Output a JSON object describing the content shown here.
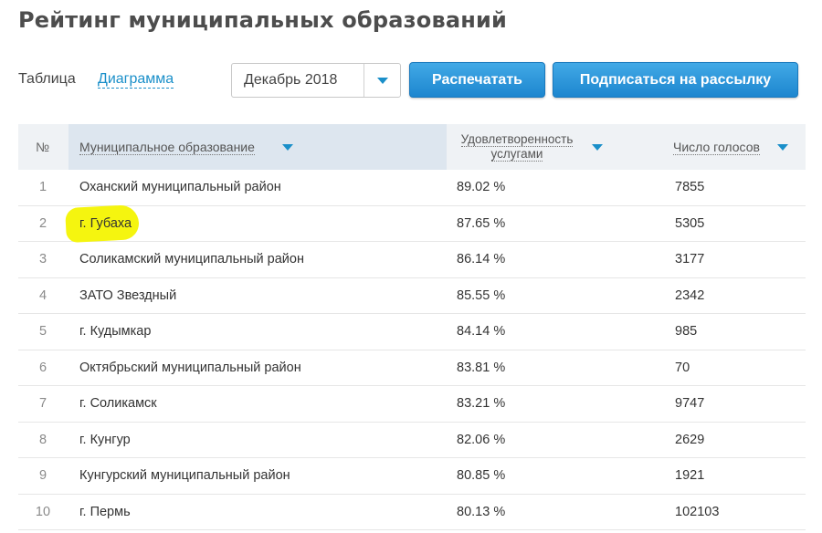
{
  "page": {
    "title": "Рейтинг муниципальных образований"
  },
  "view": {
    "table_label": "Таблица",
    "chart_link": "Диаграмма"
  },
  "period": {
    "selected": "Декабрь 2018"
  },
  "actions": {
    "print_label": "Распечатать",
    "subscribe_label": "Подписаться на рассылку"
  },
  "colors": {
    "accent": "#1a8fc9",
    "button": "#2b95d9",
    "highlight": "#f5f50f"
  },
  "table": {
    "headers": {
      "num": "№",
      "name": "Муниципальное образование",
      "satisfaction_line1": "Удовлетворенность",
      "satisfaction_line2": "услугами",
      "votes": "Число голосов"
    },
    "rows": [
      {
        "num": "1",
        "name": "Оханский муниципальный район",
        "satisfaction": "89.02 %",
        "votes": "7855"
      },
      {
        "num": "2",
        "name": "г. Губаха",
        "satisfaction": "87.65 %",
        "votes": "5305",
        "highlighted": true
      },
      {
        "num": "3",
        "name": "Соликамский муниципальный район",
        "satisfaction": "86.14 %",
        "votes": "3177"
      },
      {
        "num": "4",
        "name": "ЗАТО Звездный",
        "satisfaction": "85.55 %",
        "votes": "2342"
      },
      {
        "num": "5",
        "name": "г. Кудымкар",
        "satisfaction": "84.14 %",
        "votes": "985"
      },
      {
        "num": "6",
        "name": "Октябрьский муниципальный район",
        "satisfaction": "83.81 %",
        "votes": "70"
      },
      {
        "num": "7",
        "name": "г. Соликамск",
        "satisfaction": "83.21 %",
        "votes": "9747"
      },
      {
        "num": "8",
        "name": "г. Кунгур",
        "satisfaction": "82.06 %",
        "votes": "2629"
      },
      {
        "num": "9",
        "name": "Кунгурский муниципальный район",
        "satisfaction": "80.85 %",
        "votes": "1921"
      },
      {
        "num": "10",
        "name": "г. Пермь",
        "satisfaction": "80.13 %",
        "votes": "102103"
      }
    ]
  }
}
